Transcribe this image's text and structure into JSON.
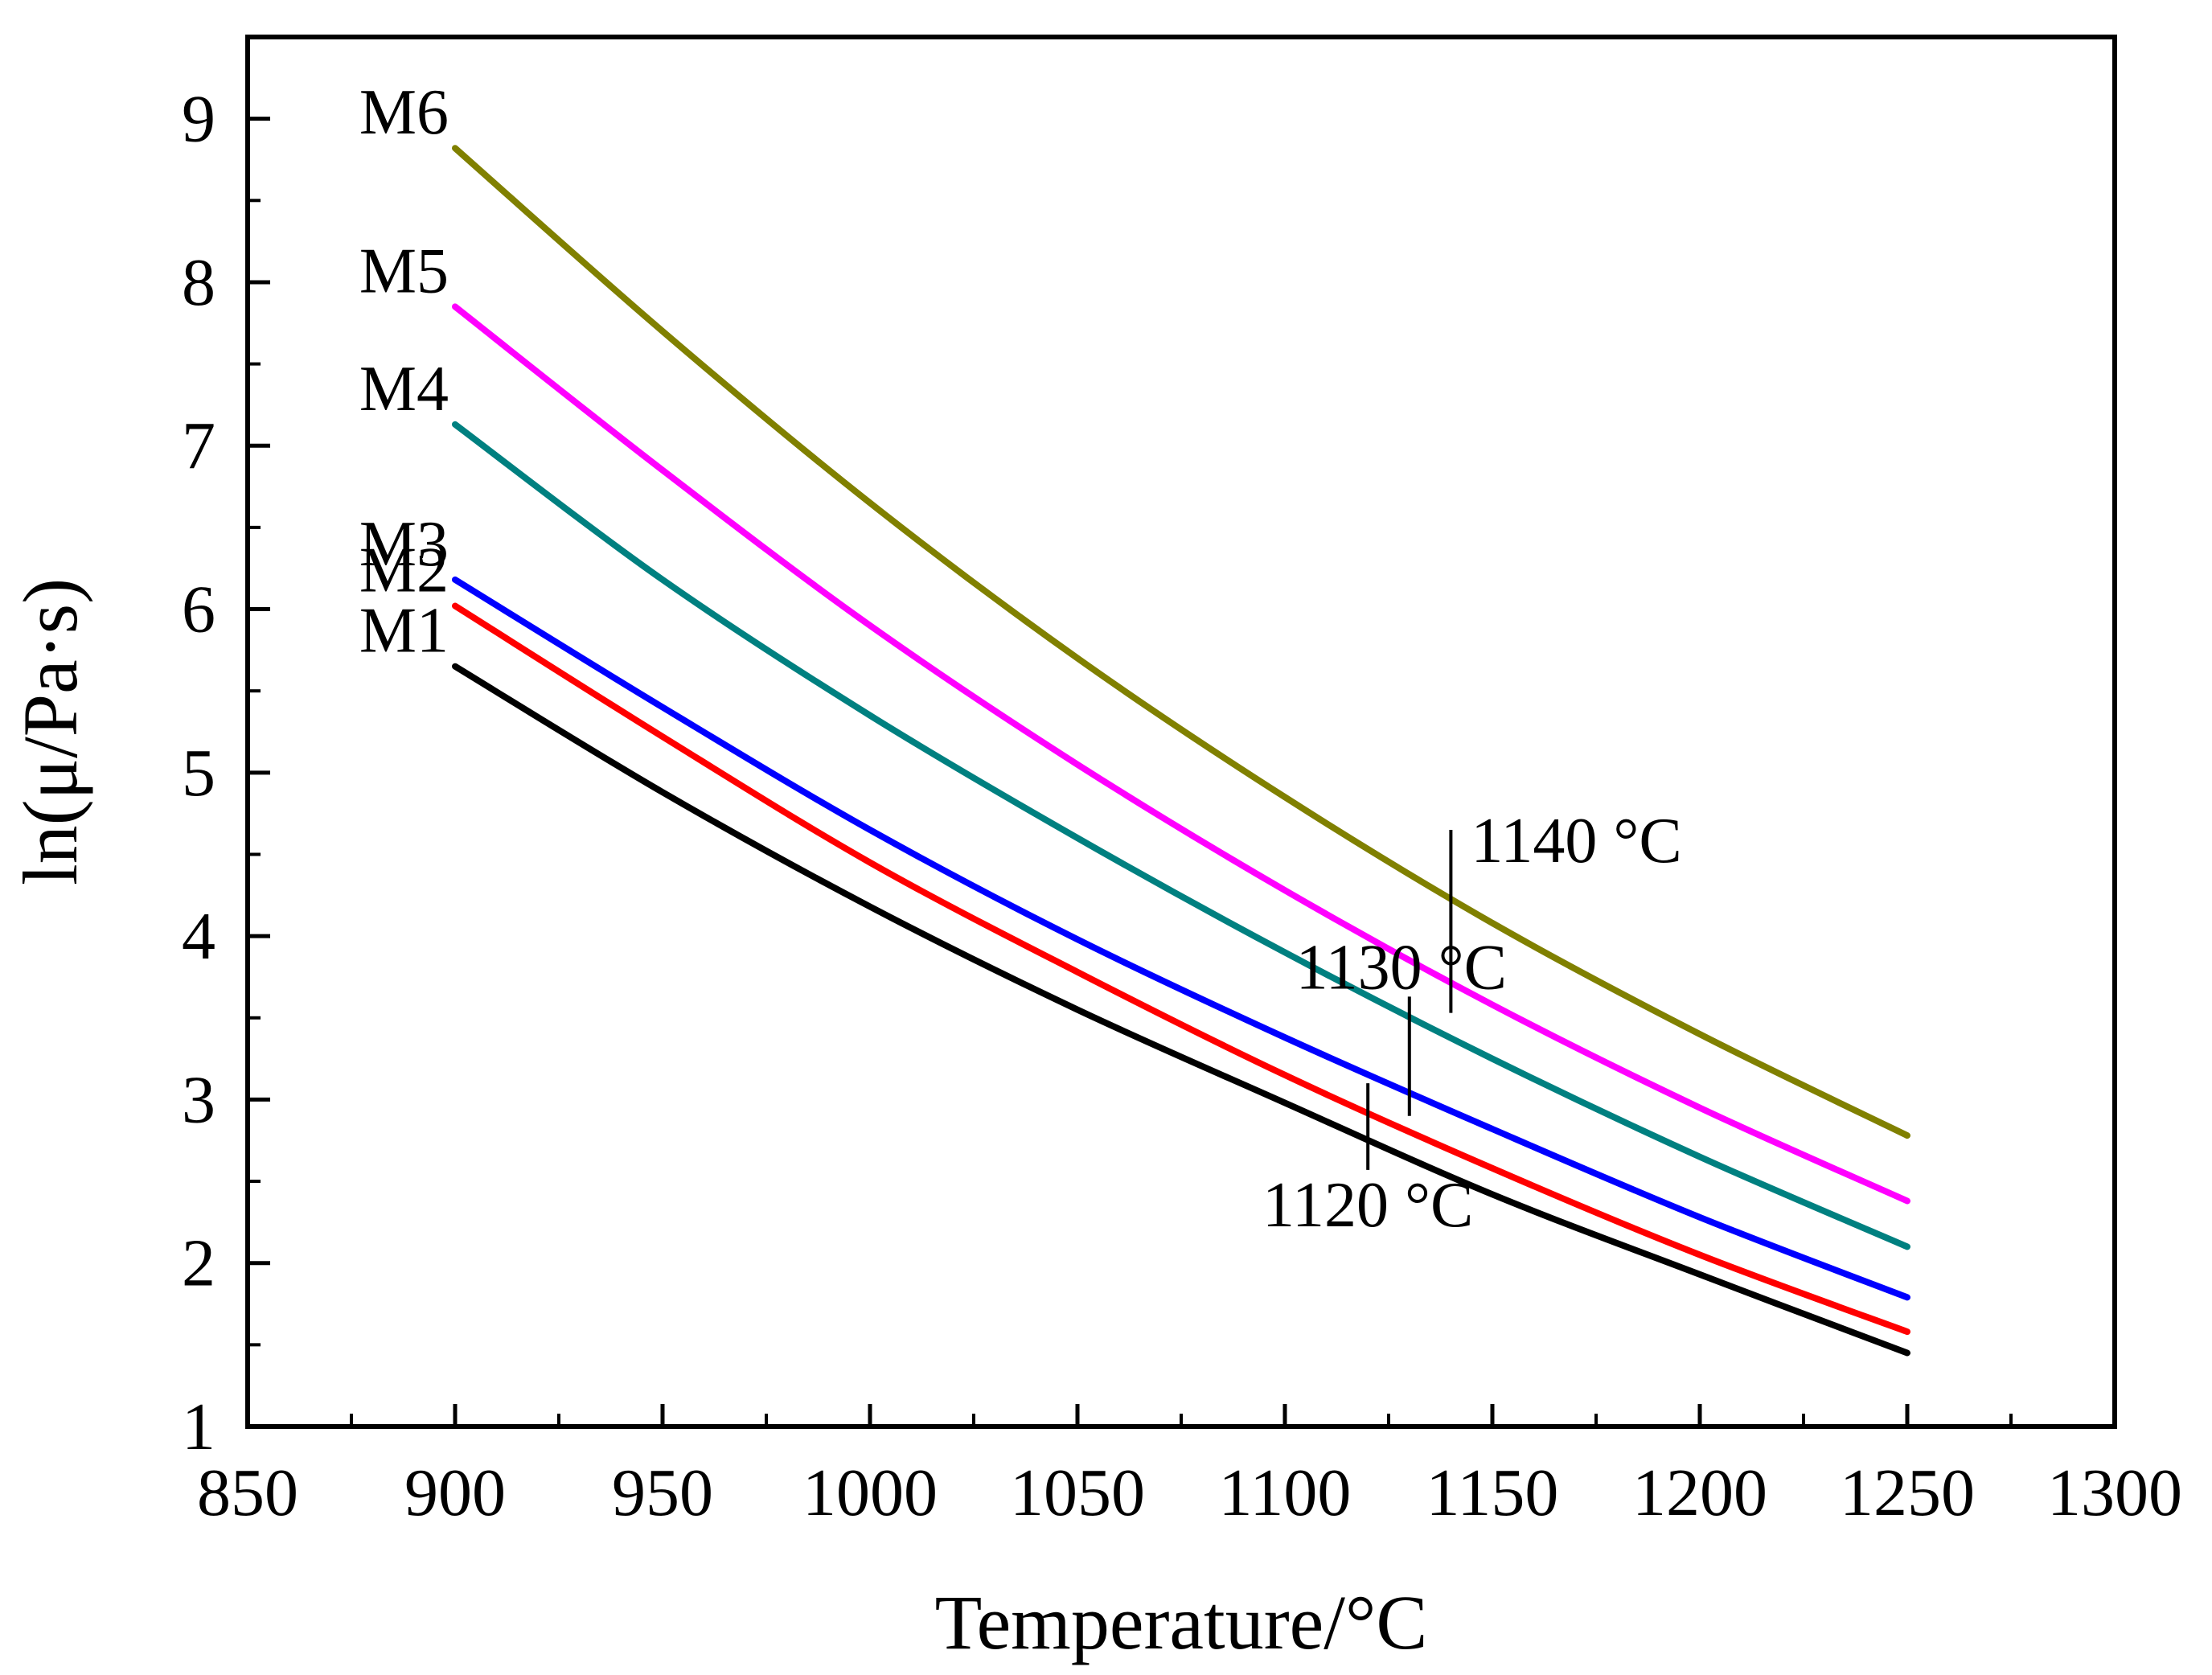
{
  "chart_data": {
    "type": "line",
    "title": "",
    "xlabel": "Temperature/°C",
    "ylabel": "ln(μ/Pa·s)",
    "xlim": [
      850,
      1300
    ],
    "ylim": [
      1,
      9.5
    ],
    "x_ticks": [
      850,
      900,
      950,
      1000,
      1050,
      1100,
      1150,
      1200,
      1250,
      1300
    ],
    "x_tick_labels": [
      "850",
      "900",
      "950",
      "1000",
      "1050",
      "1100",
      "1150",
      "1200",
      "1250",
      "1300"
    ],
    "y_ticks": [
      1,
      2,
      3,
      4,
      5,
      6,
      7,
      8,
      9
    ],
    "y_tick_labels": [
      "1",
      "2",
      "3",
      "4",
      "5",
      "6",
      "7",
      "8",
      "9"
    ],
    "grid": false,
    "x": [
      900,
      950,
      1000,
      1050,
      1100,
      1150,
      1200,
      1250
    ],
    "series": [
      {
        "name": "M1",
        "color": "#000000",
        "values": [
          5.65,
          4.88,
          4.18,
          3.55,
          2.98,
          2.42,
          1.93,
          1.45
        ]
      },
      {
        "name": "M2",
        "color": "#ff0000",
        "values": [
          6.02,
          5.22,
          4.45,
          3.78,
          3.15,
          2.58,
          2.05,
          1.58
        ]
      },
      {
        "name": "M3",
        "color": "#0000ff",
        "values": [
          6.18,
          5.4,
          4.65,
          3.98,
          3.38,
          2.82,
          2.28,
          1.79
        ]
      },
      {
        "name": "M4",
        "color": "#008080",
        "values": [
          7.13,
          6.18,
          5.35,
          4.6,
          3.9,
          3.25,
          2.65,
          2.1
        ]
      },
      {
        "name": "M5",
        "color": "#ff00ff",
        "values": [
          7.85,
          6.85,
          5.9,
          5.05,
          4.28,
          3.58,
          2.95,
          2.38
        ]
      },
      {
        "name": "M6",
        "color": "#808000",
        "values": [
          8.82,
          7.7,
          6.65,
          5.7,
          4.85,
          4.08,
          3.4,
          2.78
        ]
      }
    ],
    "annotations": [
      {
        "text": "1120 °C",
        "x": 1120,
        "y_low": 2.57,
        "y_high": 3.1
      },
      {
        "text": "1130 °C",
        "x": 1130,
        "y_low": 2.9,
        "y_high": 3.63
      },
      {
        "text": "1140 °C",
        "x": 1140,
        "y_low": 3.53,
        "y_high": 4.65
      }
    ]
  }
}
